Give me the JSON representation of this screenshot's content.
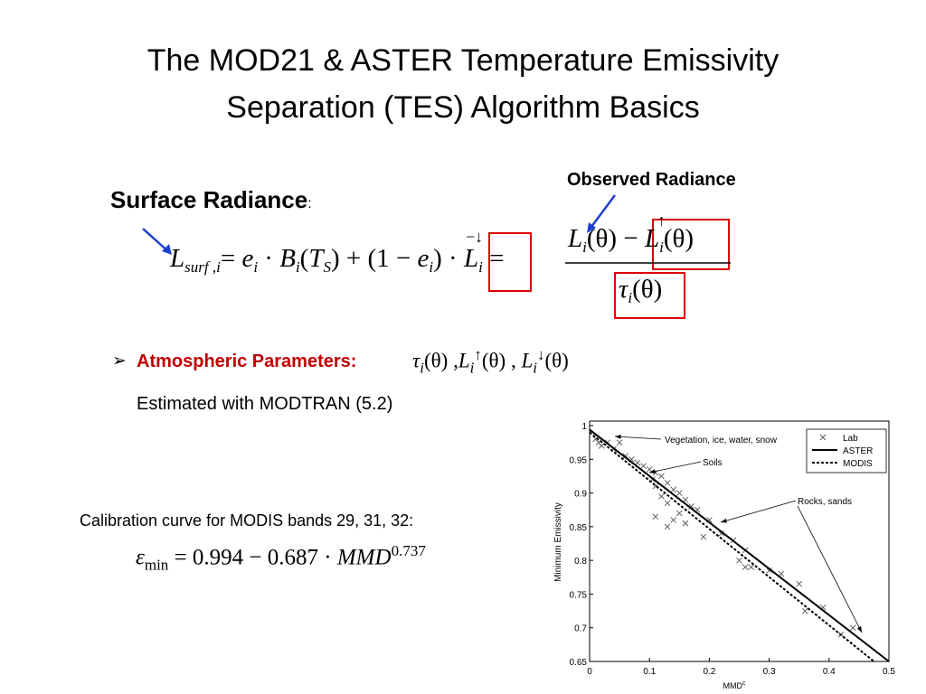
{
  "slide": {
    "title": [
      "The MOD21 & ASTER Temperature Emissivity",
      "Separation (TES) Algorithm Basics"
    ],
    "surface_label": "Surface Radiance",
    "surface_colon": ":",
    "observed_label": "Observed Radiance",
    "surface_eq": [
      "L",
      "surf ,i",
      "= ",
      "e",
      "i",
      " · ",
      "B",
      "i",
      "(",
      "T",
      "S",
      ") + (1 − ",
      "e",
      "i",
      ") · ",
      "−↓",
      "L",
      "i",
      " ="
    ],
    "numerator": [
      "L",
      "i",
      "(θ) − ",
      "↑",
      "L",
      "i",
      "(θ)"
    ],
    "denominator": [
      "τ",
      "i",
      "(θ)"
    ],
    "bullet": "➢",
    "atm_label": "Atmospheric Parameters:",
    "atm_eq": [
      "τ",
      "i",
      "(θ)",
      " ,",
      "L",
      "i",
      "↑",
      "(θ)",
      " ,  ",
      "L",
      "i",
      "↓",
      "(θ)"
    ],
    "estimated": "Estimated with MODTRAN (5.2)",
    "calibration_label": "Calibration curve for MODIS bands 29, 31, 32:",
    "calibration_eq": [
      "ε",
      "min",
      " = 0.994 − 0.687 · ",
      "MMD",
      "0.737"
    ]
  },
  "chart_data": {
    "type": "scatter",
    "xlabel": "MMD",
    "xlabel_sup": "c",
    "ylabel": "Minimum Emissivity",
    "xlim": [
      0,
      0.5
    ],
    "xticks": [
      0,
      0.1,
      0.2,
      0.3,
      0.4,
      0.5
    ],
    "ylim": [
      0.65,
      1
    ],
    "yticks": [
      0.65,
      0.7,
      0.75,
      0.8,
      0.85,
      0.9,
      0.95,
      1
    ],
    "legend": "upper right",
    "series": [
      {
        "name": "Lab",
        "type": "scatter",
        "color": "#555555",
        "x": [
          0.01,
          0.015,
          0.02,
          0.03,
          0.05,
          0.04,
          0.06,
          0.07,
          0.08,
          0.09,
          0.1,
          0.11,
          0.105,
          0.12,
          0.13,
          0.11,
          0.14,
          0.15,
          0.12,
          0.13,
          0.16,
          0.17,
          0.18,
          0.11,
          0.15,
          0.14,
          0.16,
          0.13,
          0.2,
          0.22,
          0.19,
          0.24,
          0.26,
          0.25,
          0.26,
          0.27,
          0.3,
          0.32,
          0.35,
          0.36,
          0.39,
          0.42,
          0.44
        ],
        "values": [
          0.98,
          0.975,
          0.97,
          0.975,
          0.975,
          0.965,
          0.955,
          0.95,
          0.945,
          0.94,
          0.935,
          0.93,
          0.92,
          0.925,
          0.915,
          0.91,
          0.905,
          0.9,
          0.895,
          0.885,
          0.89,
          0.88,
          0.875,
          0.865,
          0.87,
          0.86,
          0.855,
          0.85,
          0.86,
          0.84,
          0.835,
          0.83,
          0.815,
          0.8,
          0.79,
          0.79,
          0.785,
          0.78,
          0.765,
          0.725,
          0.73,
          0.69,
          0.7
        ]
      },
      {
        "name": "ASTER",
        "type": "line",
        "color": "#000000",
        "x": [
          0,
          0.5
        ],
        "values": [
          0.994,
          0.65
        ]
      },
      {
        "name": "MODIS",
        "type": "dashed",
        "color": "#000000",
        "x": [
          0,
          0.475
        ],
        "values": [
          0.99,
          0.65
        ]
      }
    ],
    "annotations": [
      "Vegetation, ice, water, snow",
      "Soils",
      "Rocks, sands"
    ]
  }
}
